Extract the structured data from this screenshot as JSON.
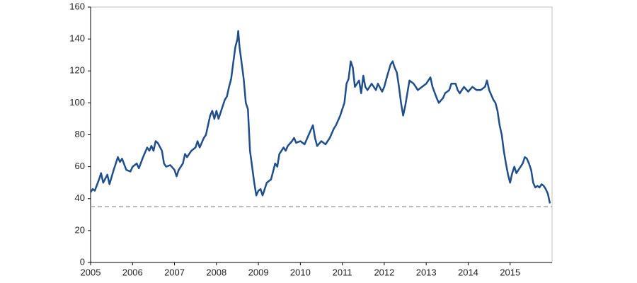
{
  "chart_data": {
    "type": "line",
    "x": [
      2005.0,
      2005.05,
      2005.1,
      2005.2,
      2005.25,
      2005.3,
      2005.4,
      2005.45,
      2005.55,
      2005.6,
      2005.65,
      2005.7,
      2005.75,
      2005.85,
      2005.95,
      2006.0,
      2006.1,
      2006.15,
      2006.25,
      2006.35,
      2006.4,
      2006.45,
      2006.5,
      2006.55,
      2006.6,
      2006.7,
      2006.75,
      2006.8,
      2006.9,
      2007.0,
      2007.05,
      2007.1,
      2007.2,
      2007.25,
      2007.3,
      2007.4,
      2007.5,
      2007.55,
      2007.6,
      2007.7,
      2007.75,
      2007.85,
      2007.9,
      2007.95,
      2008.0,
      2008.05,
      2008.15,
      2008.2,
      2008.25,
      2008.3,
      2008.35,
      2008.4,
      2008.45,
      2008.5,
      2008.52,
      2008.55,
      2008.6,
      2008.65,
      2008.7,
      2008.75,
      2008.8,
      2008.85,
      2008.9,
      2008.95,
      2009.0,
      2009.05,
      2009.1,
      2009.15,
      2009.2,
      2009.3,
      2009.4,
      2009.45,
      2009.5,
      2009.6,
      2009.65,
      2009.7,
      2009.8,
      2009.85,
      2009.9,
      2010.0,
      2010.1,
      2010.2,
      2010.3,
      2010.35,
      2010.4,
      2010.5,
      2010.6,
      2010.7,
      2010.8,
      2010.85,
      2010.95,
      2011.0,
      2011.05,
      2011.1,
      2011.15,
      2011.2,
      2011.25,
      2011.3,
      2011.4,
      2011.45,
      2011.5,
      2011.55,
      2011.6,
      2011.7,
      2011.8,
      2011.85,
      2011.95,
      2012.0,
      2012.05,
      2012.15,
      2012.2,
      2012.25,
      2012.3,
      2012.35,
      2012.4,
      2012.45,
      2012.5,
      2012.55,
      2012.6,
      2012.7,
      2012.75,
      2012.8,
      2012.9,
      2013.0,
      2013.1,
      2013.15,
      2013.25,
      2013.3,
      2013.4,
      2013.45,
      2013.55,
      2013.6,
      2013.7,
      2013.75,
      2013.8,
      2013.9,
      2014.0,
      2014.1,
      2014.2,
      2014.3,
      2014.4,
      2014.45,
      2014.5,
      2014.6,
      2014.65,
      2014.7,
      2014.75,
      2014.8,
      2014.85,
      2014.9,
      2014.95,
      2015.0,
      2015.05,
      2015.1,
      2015.15,
      2015.2,
      2015.3,
      2015.35,
      2015.4,
      2015.45,
      2015.5,
      2015.55,
      2015.6,
      2015.65,
      2015.7,
      2015.75,
      2015.8,
      2015.85,
      2015.9,
      2015.95
    ],
    "values": [
      44,
      46,
      45,
      52,
      56,
      50,
      55,
      49,
      58,
      62,
      66,
      63,
      65,
      58,
      57,
      60,
      62,
      59,
      66,
      72,
      70,
      73,
      70,
      76,
      75,
      70,
      62,
      60,
      61,
      58,
      54,
      58,
      62,
      68,
      66,
      70,
      72,
      76,
      72,
      78,
      80,
      92,
      95,
      90,
      95,
      90,
      98,
      102,
      104,
      110,
      115,
      125,
      135,
      140,
      145,
      135,
      125,
      115,
      100,
      96,
      70,
      60,
      50,
      42,
      45,
      46,
      42,
      46,
      50,
      52,
      62,
      60,
      68,
      72,
      70,
      73,
      76,
      78,
      75,
      76,
      74,
      80,
      86,
      78,
      73,
      76,
      74,
      78,
      84,
      86,
      92,
      96,
      100,
      112,
      115,
      126,
      122,
      110,
      114,
      106,
      117,
      110,
      108,
      112,
      108,
      112,
      107,
      110,
      115,
      124,
      126,
      122,
      119,
      110,
      100,
      92,
      98,
      106,
      114,
      112,
      110,
      108,
      110,
      112,
      116,
      110,
      103,
      100,
      103,
      106,
      108,
      112,
      112,
      108,
      106,
      110,
      107,
      110,
      108,
      108,
      110,
      114,
      108,
      102,
      100,
      95,
      86,
      80,
      70,
      62,
      55,
      50,
      56,
      60,
      56,
      58,
      62,
      66,
      65,
      62,
      58,
      50,
      47,
      48,
      47,
      49,
      48,
      46,
      43,
      37
    ],
    "color": "#1f4e8c",
    "xlim": [
      2005,
      2016
    ],
    "xticks": [
      2005,
      2006,
      2007,
      2008,
      2009,
      2010,
      2011,
      2012,
      2013,
      2014,
      2015
    ],
    "ylim": [
      0,
      160
    ],
    "yticks": [
      0,
      20,
      40,
      60,
      80,
      100,
      120,
      140,
      160
    ],
    "reference_line": 35,
    "reference_color": "#a6a6a6"
  }
}
